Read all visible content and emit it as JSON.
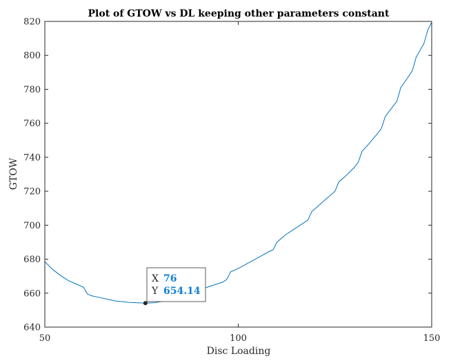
{
  "chart_data": {
    "type": "line",
    "title": "Plot of GTOW vs DL keeping other parameters constant",
    "xlabel": "Disc Loading",
    "ylabel": "GTOW",
    "xlim": [
      50,
      150
    ],
    "ylim": [
      640,
      820
    ],
    "xticks": [
      50,
      100,
      150
    ],
    "yticks": [
      640,
      660,
      680,
      700,
      720,
      740,
      760,
      780,
      800,
      820
    ],
    "grid": false,
    "line_color": "#0072bd",
    "series": [
      {
        "x": [
          50,
          52,
          54,
          56,
          58,
          60,
          61,
          62,
          64,
          66,
          68,
          70,
          72,
          74,
          76,
          78,
          80,
          82,
          84,
          86,
          88,
          90,
          92,
          94,
          96,
          97,
          98,
          100,
          102,
          104,
          106,
          108,
          109,
          110,
          112,
          114,
          116,
          118,
          119,
          120,
          122,
          124,
          125,
          126,
          128,
          130,
          131,
          132,
          134,
          136,
          137,
          138,
          140,
          141,
          142,
          144,
          145,
          146,
          148,
          149,
          150
        ],
        "y": [
          678.5,
          674.0,
          670.5,
          667.5,
          665.5,
          663.5,
          659.5,
          658.5,
          657.5,
          656.5,
          655.5,
          655.0,
          654.5,
          654.3,
          654.14,
          654.3,
          655.0,
          656.0,
          657.5,
          659.0,
          660.5,
          662.0,
          663.5,
          665.0,
          666.5,
          668.0,
          672.5,
          674.5,
          677.0,
          679.5,
          682.0,
          684.5,
          685.5,
          690.0,
          694.0,
          697.0,
          700.0,
          703.0,
          708.0,
          710.0,
          714.0,
          718.0,
          720.0,
          725.5,
          729.5,
          734.0,
          737.0,
          743.5,
          748.5,
          754.0,
          757.0,
          764.0,
          770.0,
          773.0,
          781.0,
          787.5,
          791.0,
          799.0,
          807.0,
          815.0,
          819.5
        ]
      }
    ],
    "datatip": {
      "x_key": "X",
      "x_value": "76",
      "y_key": "Y",
      "y_value": "654.14",
      "x": 76,
      "y": 654.14
    }
  }
}
